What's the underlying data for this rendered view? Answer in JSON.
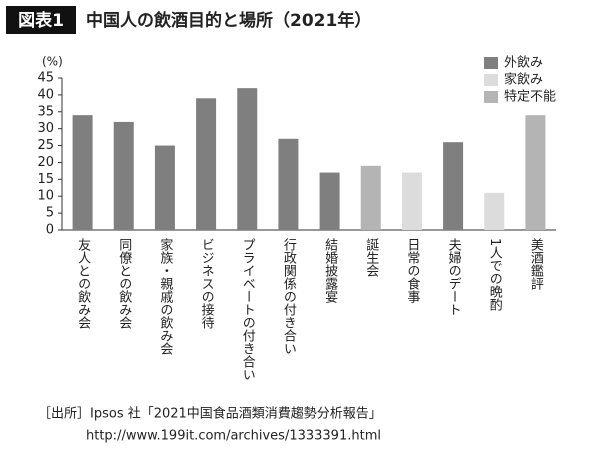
{
  "chart_data": {
    "type": "bar",
    "figure_label": "図表1",
    "title": "中国人の飲酒目的と場所（2021年）",
    "y_label": "(%)",
    "categories": [
      "友人との飲み会",
      "同僚との飲み会",
      "家族・親戚の飲み会",
      "ビジネスの接待",
      "プライベートの付き合い",
      "行政関係の付き合い",
      "結婚披露宴",
      "誕生会",
      "日常の食事",
      "夫婦のデート",
      "1人での晩酌",
      "美酒鑑評"
    ],
    "series": [
      {
        "name": "外飲み",
        "color": "#7f7f7f",
        "values": [
          34,
          32,
          25,
          39,
          42,
          27,
          17,
          null,
          null,
          26,
          null,
          null
        ]
      },
      {
        "name": "家飲み",
        "color": "#dcdcdc",
        "values": [
          null,
          null,
          null,
          null,
          null,
          null,
          null,
          null,
          17,
          null,
          11,
          null
        ]
      },
      {
        "name": "特定不能",
        "color": "#b4b4b4",
        "values": [
          null,
          null,
          null,
          null,
          null,
          null,
          null,
          19,
          null,
          null,
          null,
          34
        ]
      }
    ],
    "ylim": [
      0,
      45
    ],
    "yticks": [
      0,
      5,
      10,
      15,
      20,
      25,
      30,
      35,
      40,
      45
    ],
    "grid": false,
    "legend": "top-right",
    "source": [
      "［出所］Ipsos 社「2021中国食品酒類消費趨勢分析報告」",
      "http://www.199it.com/archives/1333391.html"
    ]
  }
}
